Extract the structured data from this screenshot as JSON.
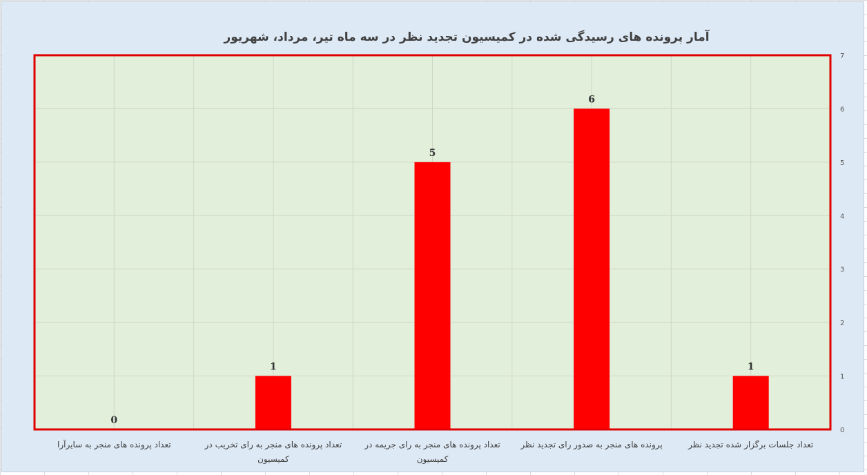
{
  "chart_data": {
    "type": "bar",
    "title": "آمار  پرونده های رسیدگی شده در کمیسیون تجدید نظر در سه ماه تیر، مرداد، شهریور",
    "categories": [
      [
        "تعداد جلسات برگزار شده تجدید نظر"
      ],
      [
        "پرونده های منجر به صدور رای تجدید نظر"
      ],
      [
        "تعداد پرونده های منجر به رای جریمه در",
        "کمیسیون"
      ],
      [
        "تعداد پرونده های منجر به رای تخریب در",
        "کمیسیون"
      ],
      [
        "تعداد پرونده های منجر به سایرآرا"
      ]
    ],
    "values": [
      1,
      6,
      5,
      1,
      0
    ],
    "value_labels": [
      "1",
      "6",
      "5",
      "1",
      "0"
    ],
    "ylim": [
      0,
      7
    ],
    "y_ticks": [
      "0",
      "1",
      "2",
      "3",
      "4",
      "5",
      "6",
      "7"
    ],
    "y_axis_side": "right",
    "category_order": "right-to-left",
    "grid": true,
    "legend": "none",
    "colors": {
      "bar": "#ff0000",
      "plot_background": "#e2efda",
      "plot_border": "#e00000",
      "chart_background": "#dde9f5",
      "gridline": "#cfd8c8"
    }
  }
}
